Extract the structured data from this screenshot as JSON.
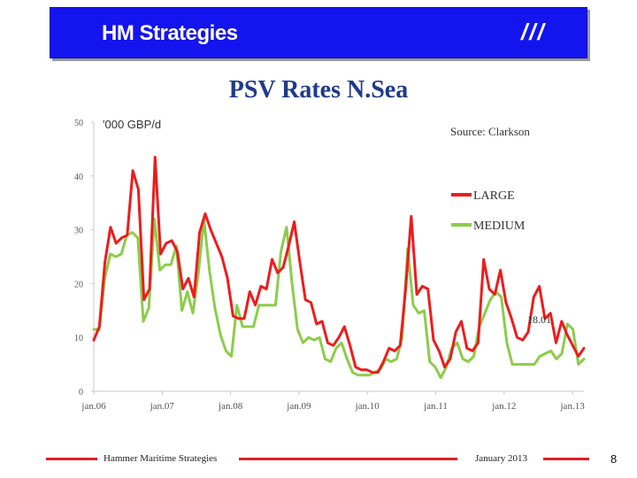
{
  "header": {
    "title": "HM Strategies",
    "mark": "///"
  },
  "colors": {
    "banner": "#1414ee",
    "large": "#ee1c1c",
    "medium": "#8ccc4a",
    "title": "#1f3a8c",
    "footer_line": "#e02020"
  },
  "footer": {
    "left": "Hammer Maritime Strategies",
    "right": "January 2013",
    "page": "8"
  },
  "chart_data": {
    "type": "line",
    "title": "PSV Rates N.Sea",
    "ylabel": "'000 GBP/d",
    "source": "Source: Clarkson",
    "annotation": "18.01",
    "ylim": [
      0,
      50
    ],
    "yticks": [
      0,
      10,
      20,
      30,
      40,
      50
    ],
    "xlim": [
      0,
      86
    ],
    "xticks": [
      {
        "label": "jan.06",
        "x": 0
      },
      {
        "label": "jan.07",
        "x": 12
      },
      {
        "label": "jan.08",
        "x": 24
      },
      {
        "label": "jan.09",
        "x": 36
      },
      {
        "label": "jan.10",
        "x": 48
      },
      {
        "label": "jan.11",
        "x": 60
      },
      {
        "label": "jan.12",
        "x": 72
      },
      {
        "label": "jan.13",
        "x": 84
      }
    ],
    "series": [
      {
        "name": "LARGE",
        "values": [
          9.5,
          12,
          24,
          30.5,
          27.5,
          28.5,
          29,
          41,
          37.5,
          17,
          19,
          43.5,
          25.5,
          27.5,
          28,
          26,
          19,
          21,
          17.5,
          29.5,
          33,
          30,
          27.5,
          25,
          21,
          14,
          13.5,
          13.5,
          18.5,
          16,
          19.5,
          19,
          24.5,
          22,
          23,
          27,
          31.5,
          24,
          17,
          16.5,
          12.5,
          13,
          9,
          8.5,
          10,
          12,
          8.5,
          4.5,
          4,
          4,
          3.5,
          3.5,
          5.5,
          8,
          7.5,
          8.5,
          19,
          32.5,
          18,
          19.5,
          19,
          9.5,
          7.5,
          4.5,
          6,
          11,
          13,
          8,
          7.5,
          9,
          24.5,
          19,
          18,
          22.5,
          16.5,
          13.5,
          10,
          9.5,
          11,
          17.5,
          19.5,
          13.5,
          14.5,
          9,
          13,
          10.5,
          8.5,
          6.5,
          8
        ]
      },
      {
        "name": "MEDIUM",
        "values": [
          11.5,
          11.5,
          21,
          25.5,
          25,
          25.5,
          29,
          29.5,
          28.5,
          13,
          15.5,
          32,
          22.5,
          23.5,
          23.5,
          27,
          15,
          18.5,
          14.5,
          22,
          32,
          22.5,
          15.5,
          10.5,
          7.5,
          6.5,
          16,
          12,
          12,
          12,
          16,
          16,
          16,
          16,
          26,
          30.5,
          20,
          11.5,
          9,
          10,
          9.5,
          10,
          6,
          5.5,
          8,
          9,
          6,
          3.5,
          3,
          3,
          3,
          3.5,
          4,
          6,
          5.5,
          6,
          10,
          26.5,
          16,
          14.5,
          15,
          5.5,
          4.5,
          2.5,
          4.5,
          8,
          9,
          6,
          5.5,
          6.5,
          12,
          14.5,
          17,
          18.5,
          17.5,
          9,
          5,
          5,
          5,
          5,
          5,
          6.5,
          7,
          7.5,
          6,
          7,
          12.5,
          11.5,
          5,
          6
        ]
      }
    ]
  }
}
